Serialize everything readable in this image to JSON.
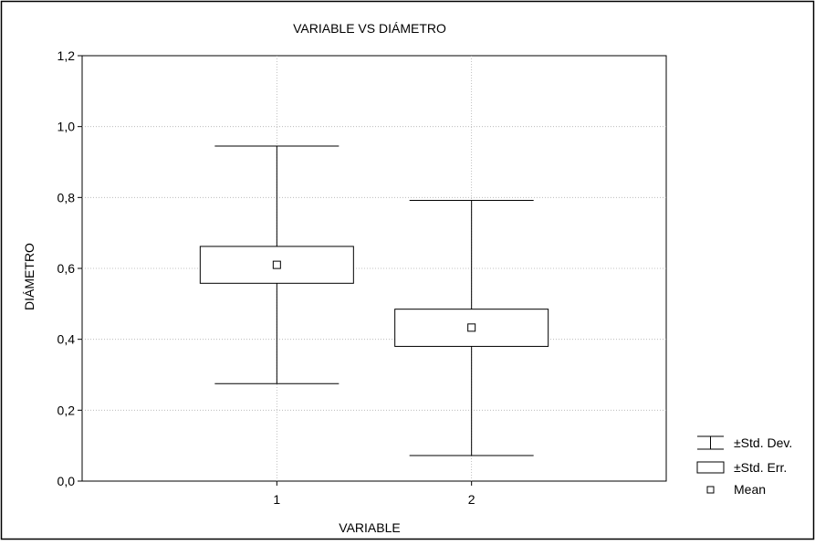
{
  "chart_data": {
    "type": "boxplot",
    "title": "VARIABLE VS DIÁMETRO",
    "xlabel": "VARIABLE",
    "ylabel": "DIÁMETRO",
    "categories": [
      "1",
      "2"
    ],
    "ylim": [
      0,
      1.2
    ],
    "yticks": [
      0,
      0.2,
      0.4,
      0.6,
      0.8,
      1.0,
      1.2
    ],
    "ytick_labels": [
      "0,0",
      "0,2",
      "0,4",
      "0,6",
      "0,8",
      "1,0",
      "1,2"
    ],
    "grid": true,
    "legend_position": "bottom-right",
    "legend": [
      "±Std. Dev.",
      "±Std. Err.",
      "Mean"
    ],
    "boxes": [
      {
        "category": "1",
        "mean": 0.61,
        "se_low": 0.558,
        "se_high": 0.662,
        "sd_low": 0.275,
        "sd_high": 0.945
      },
      {
        "category": "2",
        "mean": 0.433,
        "se_low": 0.38,
        "se_high": 0.485,
        "sd_low": 0.072,
        "sd_high": 0.792
      }
    ]
  }
}
